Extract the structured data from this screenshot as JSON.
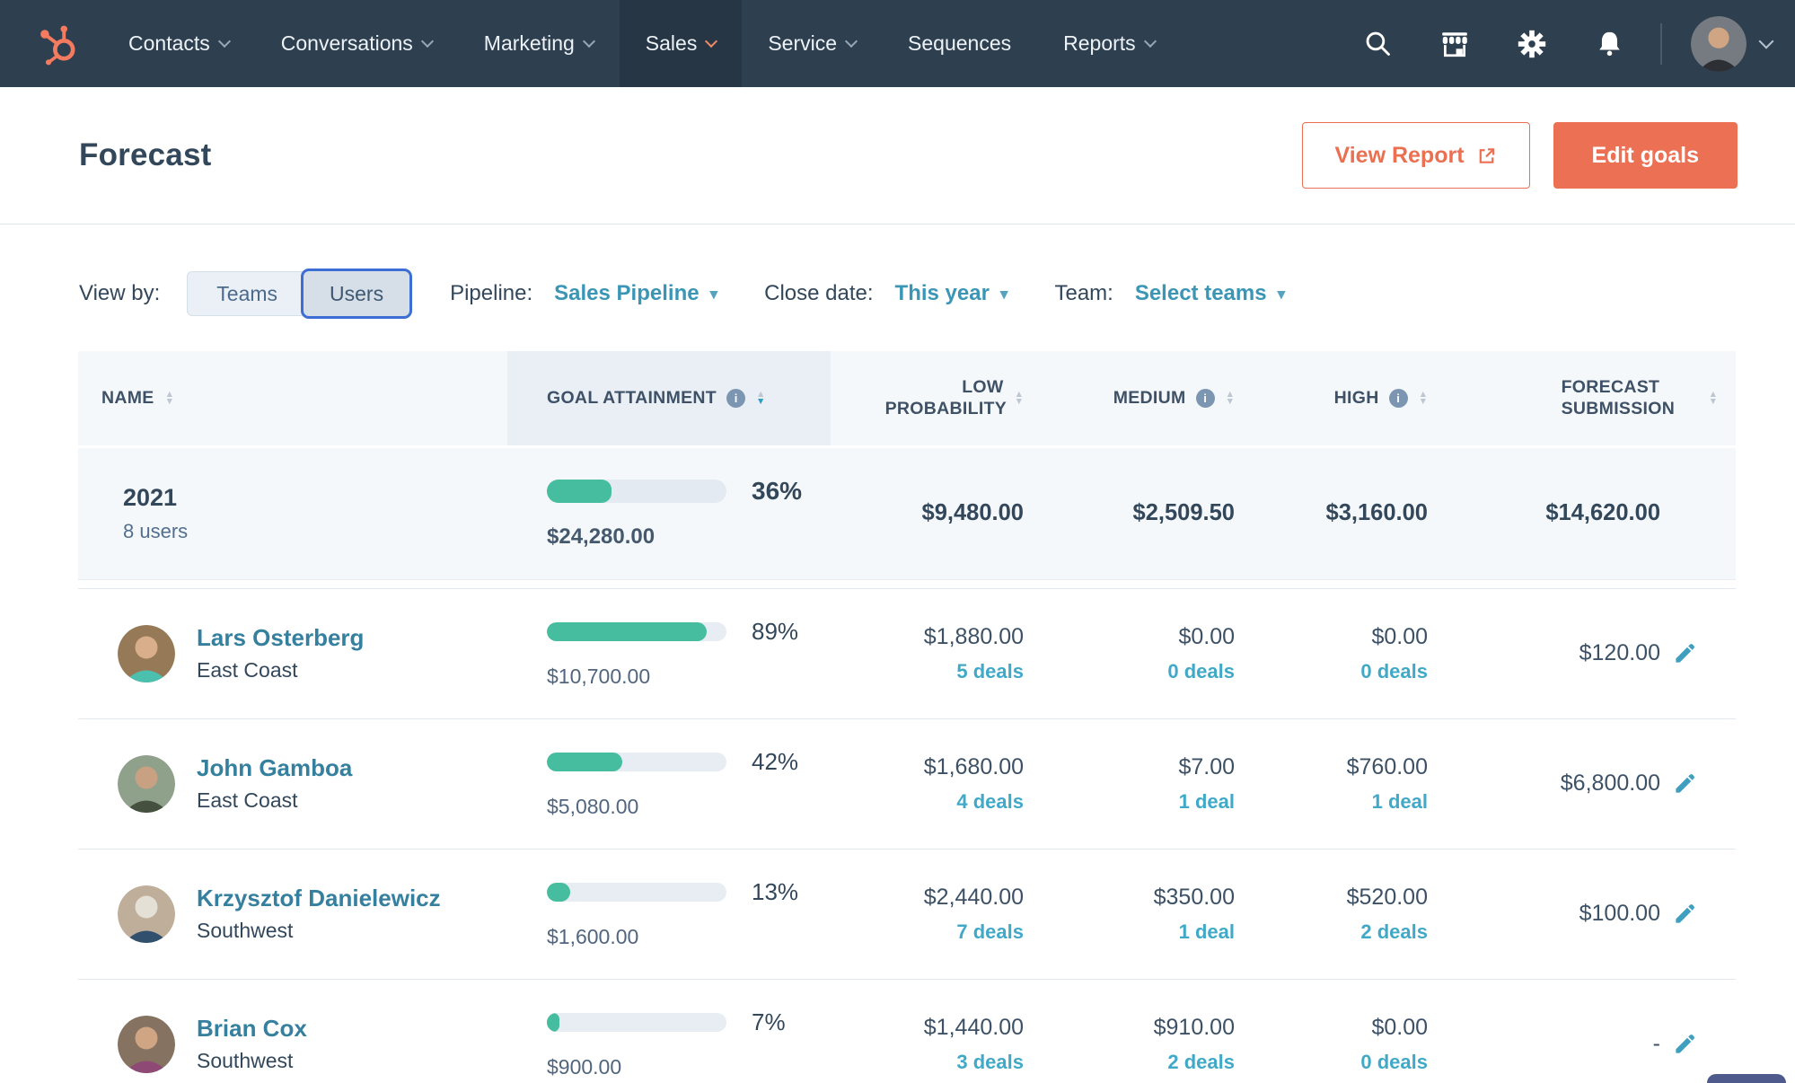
{
  "brand": {
    "name": "HubSpot",
    "logo": "hubspot-sprocket"
  },
  "nav": {
    "items": [
      {
        "label": "Contacts",
        "caret": true,
        "active": false
      },
      {
        "label": "Conversations",
        "caret": true,
        "active": false
      },
      {
        "label": "Marketing",
        "caret": true,
        "active": false
      },
      {
        "label": "Sales",
        "caret": true,
        "active": true
      },
      {
        "label": "Service",
        "caret": true,
        "active": false
      },
      {
        "label": "Sequences",
        "caret": false,
        "active": false
      },
      {
        "label": "Reports",
        "caret": true,
        "active": false
      }
    ],
    "icons": [
      "search",
      "marketplace",
      "settings",
      "notifications"
    ],
    "account": {
      "avatar": "user-photo",
      "caret": true
    }
  },
  "header": {
    "title": "Forecast",
    "buttons": {
      "view_report": "View Report",
      "edit_goals": "Edit goals"
    }
  },
  "filters": {
    "view_by": {
      "label": "View by:",
      "options": [
        "Teams",
        "Users"
      ],
      "selected": "Users"
    },
    "pipeline": {
      "label": "Pipeline:",
      "value": "Sales Pipeline"
    },
    "close_date": {
      "label": "Close date:",
      "value": "This year"
    },
    "team": {
      "label": "Team:",
      "value": "Select teams"
    }
  },
  "table": {
    "columns": [
      {
        "label": "NAME",
        "sortable": true,
        "info": false
      },
      {
        "label": "GOAL ATTAINMENT",
        "sortable": true,
        "info": true,
        "sorted": "desc"
      },
      {
        "label": "LOW PROBABILITY",
        "sortable": true,
        "info": false
      },
      {
        "label": "MEDIUM",
        "sortable": true,
        "info": true
      },
      {
        "label": "HIGH",
        "sortable": true,
        "info": true
      },
      {
        "label": "FORECAST SUBMISSION",
        "sortable": true,
        "info": false
      }
    ],
    "summary": {
      "name": "2021",
      "subtitle": "8 users",
      "percent": "36%",
      "pct": 36,
      "amount": "$24,280.00",
      "low": "$9,480.00",
      "medium": "$2,509.50",
      "high": "$3,160.00",
      "forecast": "$14,620.00"
    },
    "rows": [
      {
        "name": "Lars Osterberg",
        "team": "East Coast",
        "percent": "89%",
        "pct": 89,
        "amount": "$10,700.00",
        "low": "$1,880.00",
        "low_deals": "5 deals",
        "medium": "$0.00",
        "medium_deals": "0 deals",
        "high": "$0.00",
        "high_deals": "0 deals",
        "forecast": "$120.00"
      },
      {
        "name": "John Gamboa",
        "team": "East Coast",
        "percent": "42%",
        "pct": 42,
        "amount": "$5,080.00",
        "low": "$1,680.00",
        "low_deals": "4 deals",
        "medium": "$7.00",
        "medium_deals": "1 deal",
        "high": "$760.00",
        "high_deals": "1 deal",
        "forecast": "$6,800.00"
      },
      {
        "name": "Krzysztof Danielewicz",
        "team": "Southwest",
        "percent": "13%",
        "pct": 13,
        "amount": "$1,600.00",
        "low": "$2,440.00",
        "low_deals": "7 deals",
        "medium": "$350.00",
        "medium_deals": "1 deal",
        "high": "$520.00",
        "high_deals": "2 deals",
        "forecast": "$100.00"
      },
      {
        "name": "Brian Cox",
        "team": "Southwest",
        "percent": "7%",
        "pct": 7,
        "amount": "$900.00",
        "low": "$1,440.00",
        "low_deals": "3 deals",
        "medium": "$910.00",
        "medium_deals": "2 deals",
        "high": "$0.00",
        "high_deals": "0 deals",
        "forecast": "-"
      }
    ]
  },
  "colors": {
    "nav_bg": "#2e3f50",
    "accent_coral": "#eb7051",
    "link_teal": "#35809f",
    "deals_teal": "#41a9c8",
    "bar_fill": "#45bd9e",
    "selected_toggle_border": "#3c6ed3",
    "table_header_bg": "#f5f8fa",
    "sorted_column_bg": "#eaeff5"
  }
}
